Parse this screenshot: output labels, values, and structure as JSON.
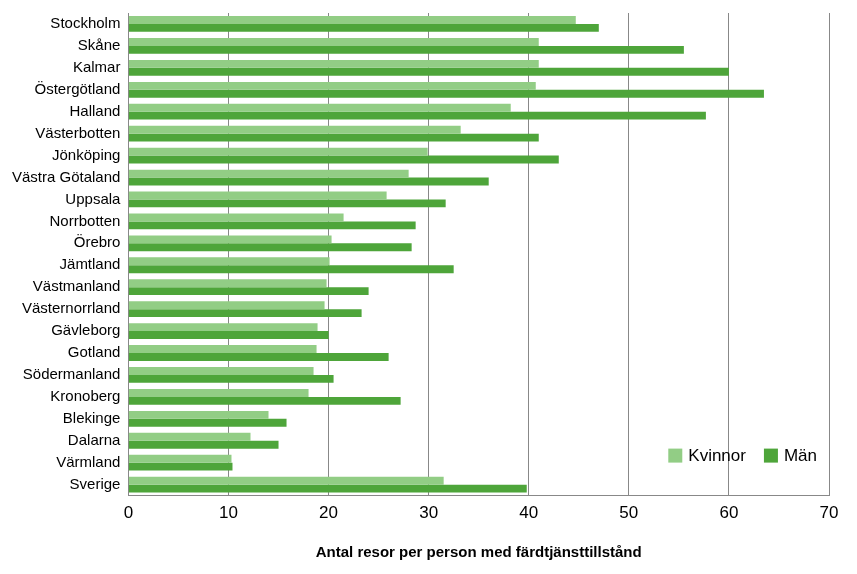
{
  "chart_data": {
    "type": "bar",
    "orientation": "horizontal",
    "x_label": "Antal resor per person med färdtjänsttillstånd",
    "categories": [
      "Stockholm",
      "Skåne",
      "Kalmar",
      "Östergötland",
      "Halland",
      "Västerbotten",
      "Jönköping",
      "Västra Götaland",
      "Uppsala",
      "Norrbotten",
      "Örebro",
      "Jämtland",
      "Västmanland",
      "Västernorrland",
      "Gävleborg",
      "Gotland",
      "Södermanland",
      "Kronoberg",
      "Blekinge",
      "Dalarna",
      "Värmland",
      "Sverige"
    ],
    "series": [
      {
        "name": "Kvinnor",
        "color": "#92cd85",
        "values": [
          44.7,
          41.0,
          41.0,
          40.7,
          38.2,
          33.2,
          29.9,
          28.0,
          25.8,
          21.5,
          20.3,
          20.1,
          19.8,
          19.6,
          18.9,
          18.8,
          18.5,
          18.0,
          14.0,
          12.2,
          10.3,
          31.5
        ]
      },
      {
        "name": "Män",
        "color": "#4ea53a",
        "values": [
          47.0,
          55.5,
          60.0,
          63.5,
          57.7,
          41.0,
          43.0,
          36.0,
          31.7,
          28.7,
          28.3,
          32.5,
          24.0,
          23.3,
          20.0,
          26.0,
          20.5,
          27.2,
          15.8,
          15.0,
          10.4,
          39.8
        ]
      }
    ],
    "xlim": [
      0,
      70
    ],
    "xticks": [
      0,
      10,
      20,
      30,
      40,
      50,
      60,
      70
    ],
    "grid": true,
    "legend": "lower right"
  }
}
